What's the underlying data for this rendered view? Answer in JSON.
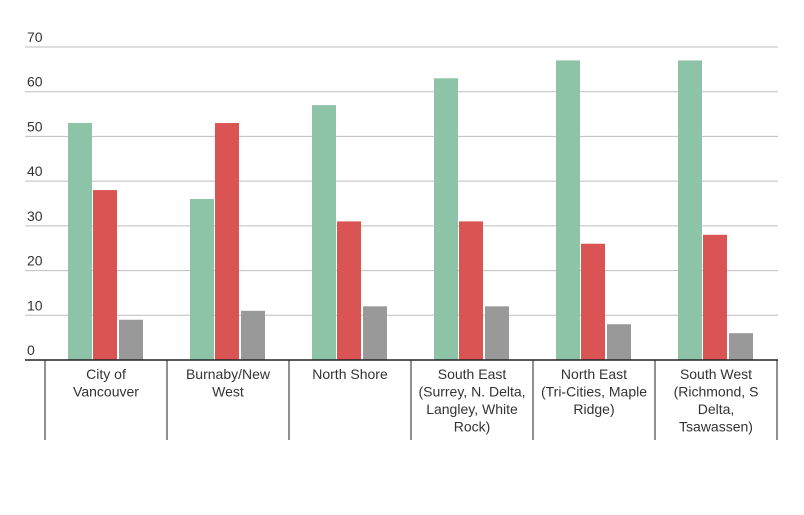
{
  "chart_data": {
    "type": "bar",
    "categories": [
      "City of Vancouver",
      "Burnaby/New West",
      "North Shore",
      "South East (Surrey, N. Delta, Langley, White Rock)",
      "North East (Tri-Cities, Maple Ridge)",
      "South West (Richmond, S Delta, Tsawassen)"
    ],
    "category_label_lines": [
      [
        "City of",
        "Vancouver"
      ],
      [
        "Burnaby/New",
        "West"
      ],
      [
        "North Shore"
      ],
      [
        "South East",
        "(Surrey, N. Delta,",
        "Langley, White",
        "Rock)"
      ],
      [
        "North East",
        "(Tri-Cities, Maple",
        "Ridge)"
      ],
      [
        "South West",
        "(Richmond, S",
        "Delta,",
        "Tsawassen)"
      ]
    ],
    "series": [
      {
        "values": [
          53,
          36,
          57,
          63,
          67,
          67
        ],
        "color": "#8dc3a7"
      },
      {
        "values": [
          38,
          53,
          31,
          31,
          26,
          28
        ],
        "color": "#db5454"
      },
      {
        "values": [
          9,
          11,
          12,
          12,
          8,
          6
        ],
        "color": "#999999"
      }
    ],
    "yticks": [
      0,
      10,
      20,
      30,
      40,
      50,
      60,
      70
    ],
    "ylim": [
      0,
      70
    ],
    "grid": true,
    "legend": "none",
    "title": "",
    "xlabel": "",
    "ylabel": ""
  }
}
